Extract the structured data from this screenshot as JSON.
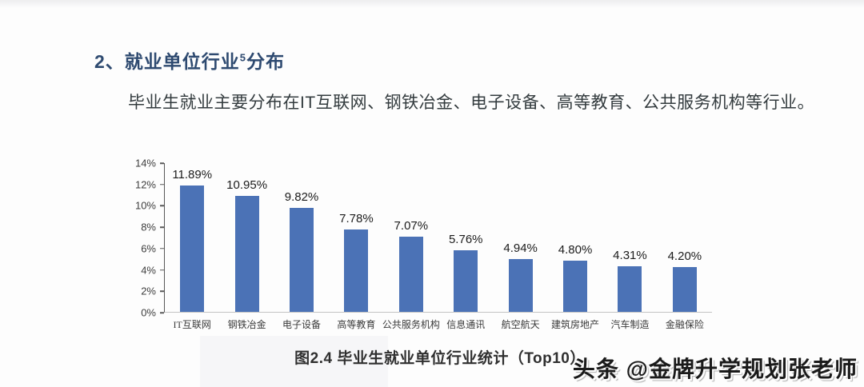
{
  "page": {
    "heading": {
      "text_before": "2、就业单位行业",
      "superscript": "5",
      "text_after": "分布"
    },
    "body_text": "毕业生就业主要分布在IT互联网、钢铁冶金、电子设备、高等教育、公共服务机构等行业。",
    "caption": "图2.4  毕业生就业单位行业统计（Top10）",
    "watermark": "头条 @金牌升学规划张老师"
  },
  "colors": {
    "heading_blue": "#2e4a70",
    "bar_blue": "#4b72b6",
    "body_text": "#333b3e",
    "axis_line": "#595959",
    "baseline": "#c3c3c3"
  },
  "chart_data": {
    "type": "bar",
    "title": "图2.4 毕业生就业单位行业统计（Top10）",
    "xlabel": "",
    "ylabel": "",
    "categories": [
      "IT互联网",
      "钢铁冶金",
      "电子设备",
      "高等教育",
      "公共服务机构",
      "信息通讯",
      "航空航天",
      "建筑房地产",
      "汽车制造",
      "金融保险"
    ],
    "values": [
      11.89,
      10.95,
      9.82,
      7.78,
      7.07,
      5.76,
      4.94,
      4.8,
      4.31,
      4.2
    ],
    "data_labels": [
      "11.89%",
      "10.95%",
      "9.82%",
      "7.78%",
      "7.07%",
      "5.76%",
      "4.94%",
      "4.80%",
      "4.31%",
      "4.20%"
    ],
    "ylim": [
      0,
      14
    ],
    "yticks": [
      "14%",
      "12%",
      "10%",
      "8%",
      "6%",
      "4%",
      "2%",
      "0%"
    ],
    "grid": false,
    "legend_position": "none",
    "bar_color": "#4b72b6"
  }
}
